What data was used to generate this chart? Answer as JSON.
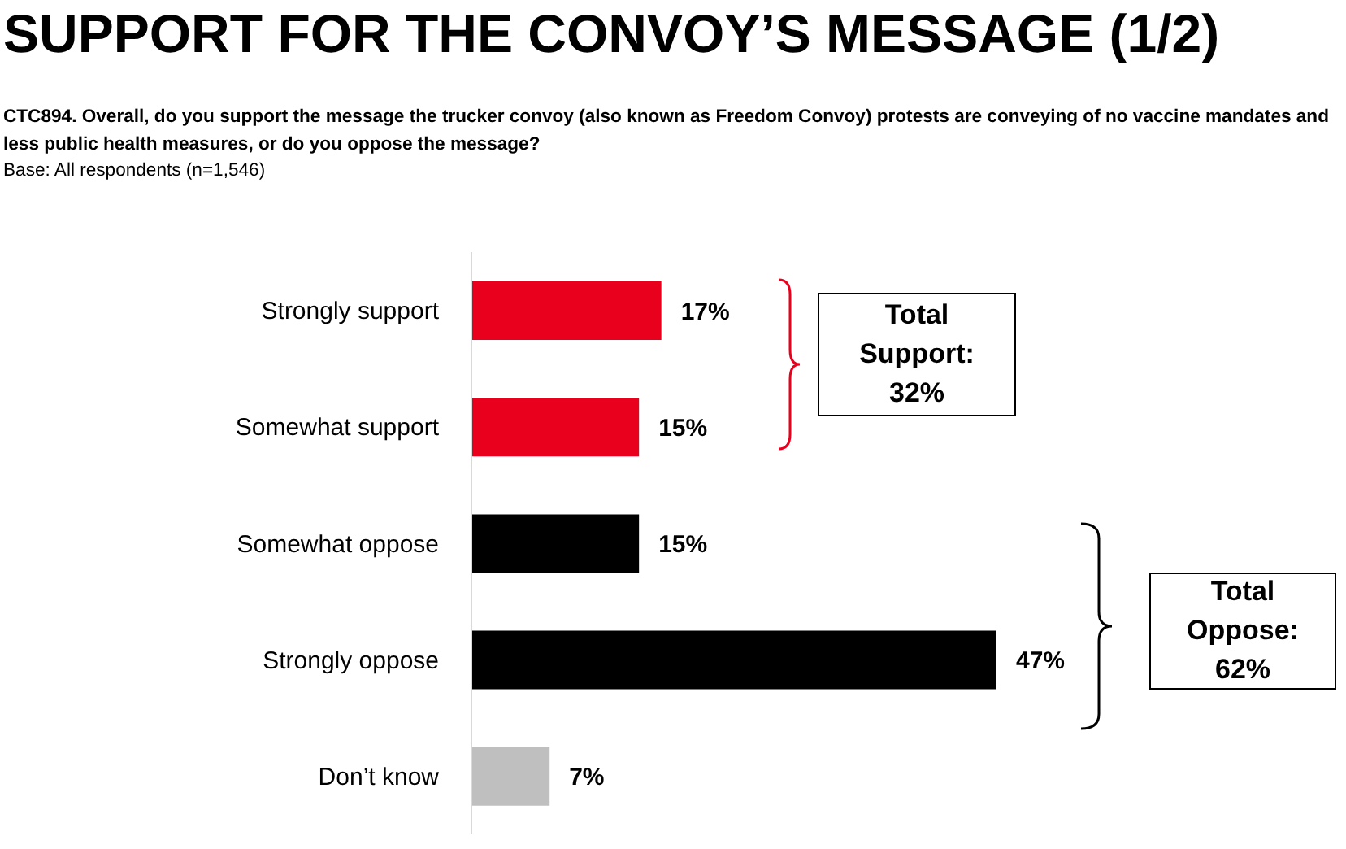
{
  "chart_data": {
    "type": "bar",
    "orientation": "horizontal",
    "title": "SUPPORT FOR THE CONVOY’S MESSAGE (1/2)",
    "subtitle": "CTC894. Overall, do you support the message the trucker convoy (also known as Freedom Convoy) protests are conveying of no vaccine mandates and less public health measures, or do you oppose the message?",
    "categories": [
      "Strongly support",
      "Somewhat support",
      "Somewhat oppose",
      "Strongly oppose",
      "Don’t know"
    ],
    "values": [
      17,
      15,
      15,
      47,
      7
    ],
    "colors": [
      "#e8001c",
      "#e8001c",
      "#000000",
      "#000000",
      "#bfbfbf"
    ],
    "value_labels": [
      "17%",
      "15%",
      "15%",
      "47%",
      "7%"
    ],
    "annotations": [
      "Base: All respondents (n=1,546)",
      "Total Support: 32%",
      "Total Oppose: 62%"
    ]
  }
}
